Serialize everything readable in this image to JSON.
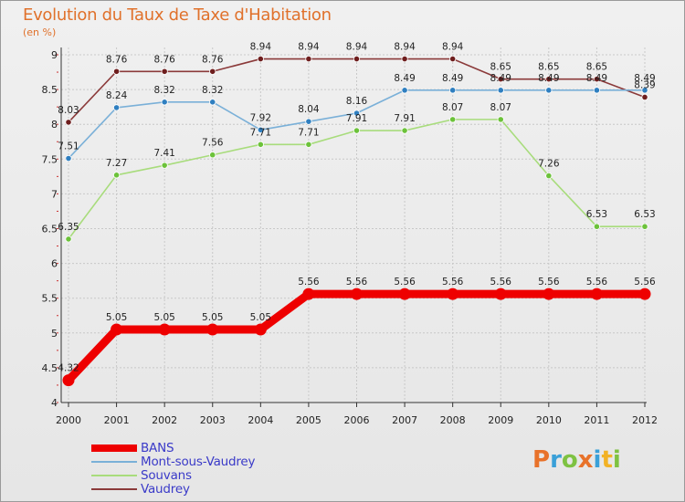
{
  "title": "Evolution du Taux de Taxe d'Habitation",
  "subtitle": "(en %)",
  "logo": {
    "letters": [
      "P",
      "r",
      "o",
      "x",
      "i",
      "t",
      "i"
    ],
    "colors": [
      "#e8722a",
      "#3aa0d8",
      "#7ec242",
      "#e8722a",
      "#3aa0d8",
      "#f2b225",
      "#7ec242"
    ]
  },
  "chart_data": {
    "type": "line",
    "x": [
      "2000",
      "2001",
      "2002",
      "2003",
      "2004",
      "2005",
      "2006",
      "2007",
      "2008",
      "2009",
      "2010",
      "2011",
      "2012"
    ],
    "ylim": [
      4,
      9
    ],
    "yticks": [
      "4",
      "4.5",
      "5",
      "5.5",
      "6",
      "6.5",
      "7",
      "7.5",
      "8",
      "8.5",
      "9"
    ],
    "grid": true,
    "legend_position": "bottom-left",
    "series": [
      {
        "name": "BANS",
        "color": "#ee0000",
        "values": [
          4.32,
          5.05,
          5.05,
          5.05,
          5.05,
          5.56,
          5.56,
          5.56,
          5.56,
          5.56,
          5.56,
          5.56,
          5.56
        ],
        "labels": [
          "4.32",
          "5.05",
          "5.05",
          "5.05",
          "5.05",
          "5.56",
          "5.56",
          "5.56",
          "5.56",
          "5.56",
          "5.56",
          "5.56",
          "5.56"
        ]
      },
      {
        "name": "Mont-sous-Vaudrey",
        "color": "#7ab0d8",
        "marker": "#2f7fc0",
        "values": [
          7.51,
          8.24,
          8.32,
          8.32,
          7.92,
          8.04,
          8.16,
          8.49,
          8.49,
          8.49,
          8.49,
          8.49,
          8.49
        ],
        "labels": [
          "7.51",
          "8.24",
          "8.32",
          "8.32",
          "7.92",
          "8.04",
          "8.16",
          "8.49",
          "8.49",
          "8.49",
          "8.49",
          "8.49",
          "8.49"
        ]
      },
      {
        "name": "Souvans",
        "color": "#a8dc7c",
        "marker": "#6cc23a",
        "values": [
          6.35,
          7.27,
          7.41,
          7.56,
          7.71,
          7.71,
          7.91,
          7.91,
          8.07,
          8.07,
          7.26,
          6.53,
          6.53
        ],
        "labels": [
          "6.35",
          "7.27",
          "7.41",
          "7.56",
          "7.71",
          "7.71",
          "7.91",
          "7.91",
          "8.07",
          "8.07",
          "7.26",
          "6.53",
          "6.53"
        ]
      },
      {
        "name": "Vaudrey",
        "color": "#8b3a3a",
        "marker": "#6e1e1e",
        "values": [
          8.03,
          8.76,
          8.76,
          8.76,
          8.94,
          8.94,
          8.94,
          8.94,
          8.94,
          8.65,
          8.65,
          8.65,
          8.39
        ],
        "labels": [
          "8.03",
          "8.76",
          "8.76",
          "8.76",
          "8.94",
          "8.94",
          "8.94",
          "8.94",
          "8.94",
          "8.65",
          "8.65",
          "8.65",
          "8.39"
        ]
      }
    ]
  }
}
